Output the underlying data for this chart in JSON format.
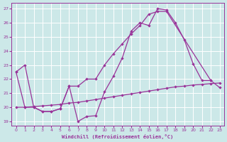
{
  "line1_x": [
    0,
    1,
    2,
    3,
    4,
    5,
    6,
    7,
    8,
    9,
    10,
    11,
    12,
    13,
    14,
    15,
    16,
    17,
    18,
    19,
    20,
    21,
    22
  ],
  "line1_y": [
    22.5,
    23.0,
    20.0,
    19.7,
    19.7,
    19.9,
    21.5,
    19.0,
    19.35,
    19.4,
    21.1,
    22.2,
    23.5,
    25.4,
    26.0,
    25.8,
    27.0,
    26.9,
    26.0,
    24.8,
    23.1,
    21.9,
    21.9
  ],
  "line2_x": [
    0,
    1,
    2,
    3,
    4,
    5,
    6,
    7,
    8,
    9,
    10,
    11,
    12,
    13,
    14,
    15,
    16,
    17,
    22,
    23
  ],
  "line2_y": [
    22.5,
    20.0,
    20.0,
    19.7,
    19.7,
    19.9,
    21.5,
    21.5,
    22.0,
    22.0,
    23.0,
    23.8,
    24.5,
    25.2,
    25.8,
    26.6,
    26.8,
    26.8,
    21.9,
    21.4
  ],
  "line3_x": [
    0,
    1,
    2,
    3,
    4,
    5,
    6,
    7,
    8,
    9,
    10,
    11,
    12,
    13,
    14,
    15,
    16,
    17,
    18,
    19,
    20,
    21,
    22,
    23
  ],
  "line3_y": [
    20.0,
    20.0,
    20.05,
    20.1,
    20.15,
    20.2,
    20.3,
    20.35,
    20.45,
    20.55,
    20.65,
    20.75,
    20.85,
    20.95,
    21.05,
    21.15,
    21.25,
    21.35,
    21.45,
    21.5,
    21.58,
    21.62,
    21.68,
    21.72
  ],
  "ylim": [
    18.7,
    27.4
  ],
  "xlim": [
    -0.5,
    23.5
  ],
  "yticks": [
    19,
    20,
    21,
    22,
    23,
    24,
    25,
    26,
    27
  ],
  "xticks": [
    0,
    1,
    2,
    3,
    4,
    5,
    6,
    7,
    8,
    9,
    10,
    11,
    12,
    13,
    14,
    15,
    16,
    17,
    18,
    19,
    20,
    21,
    22,
    23
  ],
  "xlabel": "Windchill (Refroidissement éolien,°C)",
  "line_color": "#993399",
  "bg_color": "#cce8e8",
  "grid_color": "#b8d8d8",
  "title": ""
}
